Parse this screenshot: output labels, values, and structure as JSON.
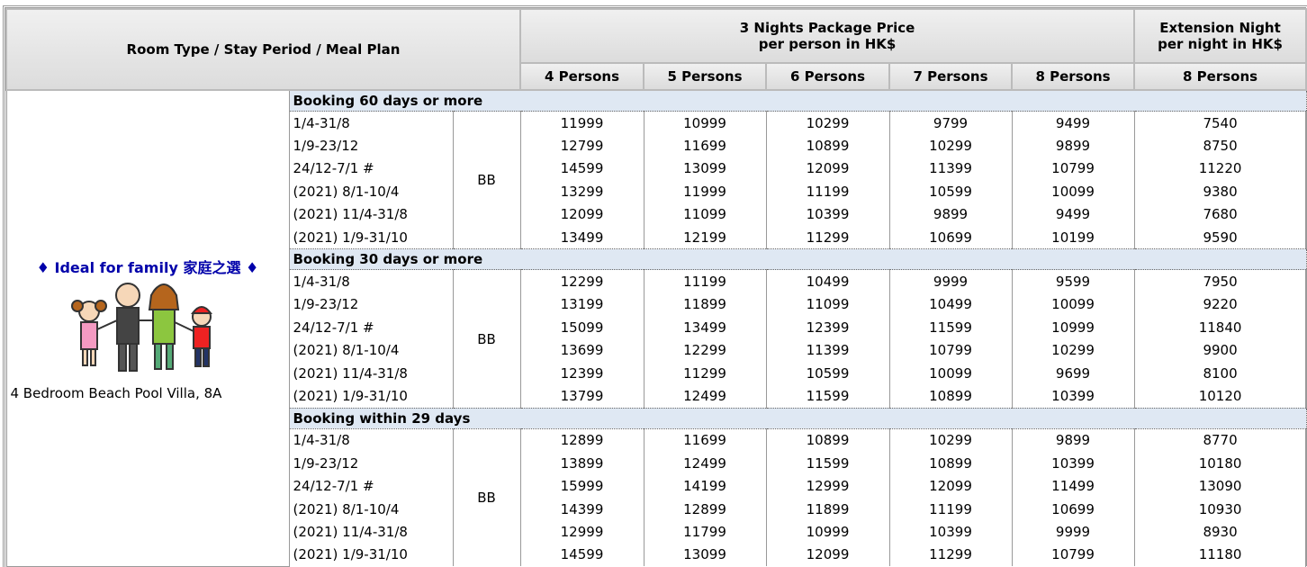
{
  "header": {
    "room_col": "Room Type / Stay Period / Meal Plan",
    "package_title": "3 Nights Package Price",
    "package_sub": "per person in HK$",
    "extension_title": "Extension Night",
    "extension_sub": "per night in HK$",
    "persons": [
      "4 Persons",
      "5 Persons",
      "6 Persons",
      "7 Persons",
      "8 Persons",
      "8 Persons"
    ]
  },
  "room": {
    "tagline": "♦ Ideal for family 家庭之選 ♦",
    "name": "4 Bedroom Beach Pool Villa, 8A"
  },
  "groups": [
    {
      "title": "Booking 60 days or more",
      "meal": "BB",
      "rows": [
        {
          "period": "1/4-31/8",
          "prices": [
            11999,
            10999,
            10299,
            9799,
            9499,
            7540
          ]
        },
        {
          "period": "1/9-23/12",
          "prices": [
            12799,
            11699,
            10899,
            10299,
            9899,
            8750
          ]
        },
        {
          "period": "24/12-7/1 #",
          "prices": [
            14599,
            13099,
            12099,
            11399,
            10799,
            11220
          ]
        },
        {
          "period": "(2021) 8/1-10/4",
          "prices": [
            13299,
            11999,
            11199,
            10599,
            10099,
            9380
          ]
        },
        {
          "period": "(2021) 11/4-31/8",
          "prices": [
            12099,
            11099,
            10399,
            9899,
            9499,
            7680
          ]
        },
        {
          "period": "(2021) 1/9-31/10",
          "prices": [
            13499,
            12199,
            11299,
            10699,
            10199,
            9590
          ]
        }
      ]
    },
    {
      "title": "Booking 30 days or more",
      "meal": "BB",
      "rows": [
        {
          "period": "1/4-31/8",
          "prices": [
            12299,
            11199,
            10499,
            9999,
            9599,
            7950
          ]
        },
        {
          "period": "1/9-23/12",
          "prices": [
            13199,
            11899,
            11099,
            10499,
            10099,
            9220
          ]
        },
        {
          "period": "24/12-7/1 #",
          "prices": [
            15099,
            13499,
            12399,
            11599,
            10999,
            11840
          ]
        },
        {
          "period": "(2021) 8/1-10/4",
          "prices": [
            13699,
            12299,
            11399,
            10799,
            10299,
            9900
          ]
        },
        {
          "period": "(2021) 11/4-31/8",
          "prices": [
            12399,
            11299,
            10599,
            10099,
            9699,
            8100
          ]
        },
        {
          "period": "(2021) 1/9-31/10",
          "prices": [
            13799,
            12499,
            11599,
            10899,
            10399,
            10120
          ]
        }
      ]
    },
    {
      "title": "Booking within 29 days",
      "meal": "BB",
      "rows": [
        {
          "period": "1/4-31/8",
          "prices": [
            12899,
            11699,
            10899,
            10299,
            9899,
            8770
          ]
        },
        {
          "period": "1/9-23/12",
          "prices": [
            13899,
            12499,
            11599,
            10899,
            10399,
            10180
          ]
        },
        {
          "period": "24/12-7/1 #",
          "prices": [
            15999,
            14199,
            12999,
            12099,
            11499,
            13090
          ]
        },
        {
          "period": "(2021) 8/1-10/4",
          "prices": [
            14399,
            12899,
            11899,
            11199,
            10699,
            10930
          ]
        },
        {
          "period": "(2021) 11/4-31/8",
          "prices": [
            12999,
            11799,
            10999,
            10399,
            9999,
            8930
          ]
        },
        {
          "period": "(2021) 1/9-31/10",
          "prices": [
            14599,
            13099,
            12099,
            11299,
            10799,
            11180
          ]
        }
      ]
    }
  ]
}
